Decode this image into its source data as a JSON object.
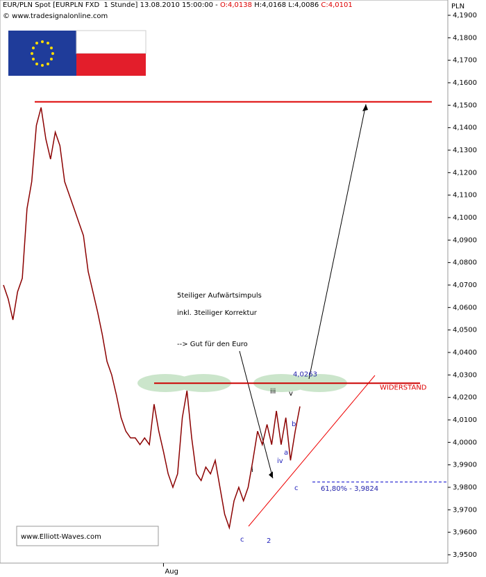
{
  "chart_data": {
    "type": "line",
    "header": [
      "EUR/PLN Spot [EURPLN FXD  1 Stunde] 13.08.2010 15:00:00 -",
      "O:4,0138",
      "H:4,0168 L:4,0086",
      "C:4,0101"
    ],
    "copyright": "© www.tradesignalonline.com",
    "y_axis_label": "PLN",
    "watermark": "www.Elliott-Waves.com",
    "comment": [
      "5teiliger Aufwärtsimpuls",
      "inkl. 3teiliger Korrektur",
      "--> Gut für den Euro"
    ],
    "resistance_label": "WIDERSTAND",
    "levels": [
      {
        "value": 4.1515
      },
      {
        "value": 4.0263,
        "label": "4,0263"
      },
      {
        "value": 3.9824,
        "label": "61,80% - 3,9824"
      }
    ],
    "wave_labels": [
      "c",
      "2",
      "i",
      "iii",
      "iv",
      "v",
      "a",
      "b",
      "c"
    ],
    "categories": [
      null,
      null,
      null,
      null,
      null,
      null,
      null,
      null,
      null,
      null,
      null,
      null,
      null,
      null,
      null,
      null,
      null,
      null,
      null,
      null,
      null,
      null,
      null,
      null,
      null,
      null,
      null,
      null,
      null,
      null,
      null,
      null,
      null,
      null,
      "Aug",
      null,
      null,
      null,
      null,
      null,
      null,
      null,
      null,
      null,
      null,
      null,
      null,
      null,
      null,
      null,
      null,
      null,
      null,
      null,
      null,
      null,
      null,
      null,
      null,
      null,
      null,
      null,
      null,
      null
    ],
    "series": [
      {
        "name": "EUR/PLN",
        "color": "#8b0000",
        "values": [
          4.07,
          4.0638,
          4.0545,
          4.067,
          4.073,
          4.104,
          4.116,
          4.141,
          4.149,
          4.135,
          4.126,
          4.138,
          4.132,
          4.116,
          4.11,
          4.104,
          4.098,
          4.092,
          4.076,
          4.067,
          4.058,
          4.048,
          4.036,
          4.03,
          4.021,
          4.011,
          4.005,
          4.002,
          4.002,
          3.999,
          4.002,
          3.999,
          4.017,
          4.005,
          3.996,
          3.986,
          3.98,
          3.986,
          4.011,
          4.023,
          4.002,
          3.986,
          3.983,
          3.989,
          3.986,
          3.992,
          3.98,
          3.968,
          3.962,
          3.974,
          3.98,
          3.974,
          3.98,
          3.992,
          4.005,
          3.999,
          4.008,
          3.999,
          4.014,
          3.999,
          4.011,
          3.992,
          4.005,
          4.016
        ]
      }
    ],
    "ylim": [
      3.9465,
      4.1935
    ],
    "yticks": [
      {
        "value": 3.95,
        "label": "3,9500"
      },
      {
        "value": 3.96,
        "label": "3,9600"
      },
      {
        "value": 3.97,
        "label": "3,9700"
      },
      {
        "value": 3.98,
        "label": "3,9800"
      },
      {
        "value": 3.99,
        "label": "3,9900"
      },
      {
        "value": 4.0,
        "label": "4,0000"
      },
      {
        "value": 4.01,
        "label": "4,0100"
      },
      {
        "value": 4.02,
        "label": "4,0200"
      },
      {
        "value": 4.03,
        "label": "4,0300"
      },
      {
        "value": 4.04,
        "label": "4,0400"
      },
      {
        "value": 4.05,
        "label": "4,0500"
      },
      {
        "value": 4.06,
        "label": "4,0600"
      },
      {
        "value": 4.07,
        "label": "4,0700"
      },
      {
        "value": 4.08,
        "label": "4,0800"
      },
      {
        "value": 4.09,
        "label": "4,0900"
      },
      {
        "value": 4.1,
        "label": "4,1000"
      },
      {
        "value": 4.11,
        "label": "4,1100"
      },
      {
        "value": 4.12,
        "label": "4,1200"
      },
      {
        "value": 4.13,
        "label": "4,1300"
      },
      {
        "value": 4.14,
        "label": "4,1400"
      },
      {
        "value": 4.15,
        "label": "4,1500"
      },
      {
        "value": 4.16,
        "label": "4,1600"
      },
      {
        "value": 4.17,
        "label": "4,1700"
      },
      {
        "value": 4.18,
        "label": "4,1800"
      },
      {
        "value": 4.19,
        "label": "4,1900"
      }
    ]
  }
}
